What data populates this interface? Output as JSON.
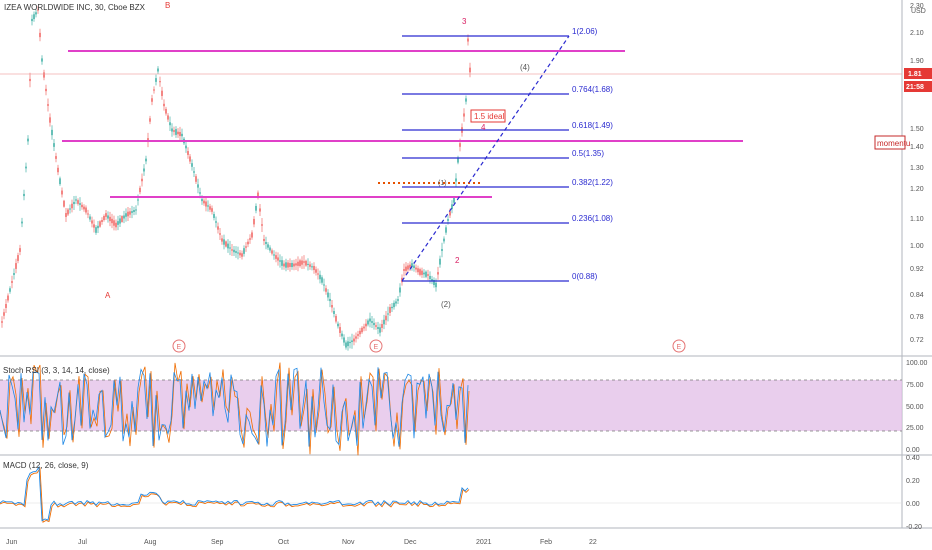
{
  "header": {
    "symbol_title": "IZEA WORLDWIDE INC, 30, Cboe BZX",
    "currency": "USD"
  },
  "price_axis": {
    "ticks": [
      "2.30",
      "2.10",
      "1.90",
      "1.70",
      "1.50",
      "1.40",
      "1.30",
      "1.20",
      "1.10",
      "1.00",
      "0.92",
      "0.84",
      "0.78",
      "0.72"
    ],
    "last_price_badge": "1.81",
    "countdown_badge": "21:58"
  },
  "fib_levels": [
    {
      "label": "1(2.06)"
    },
    {
      "label": "0.764(1.68)"
    },
    {
      "label": "0.618(1.49)"
    },
    {
      "label": "0.5(1.35)"
    },
    {
      "label": "0.382(1.22)"
    },
    {
      "label": "0.236(1.08)"
    },
    {
      "label": "0(0.88)"
    }
  ],
  "annotations": {
    "wave_b": "B",
    "wave_a": "A",
    "wave_3": "3",
    "wave_4_paren": "(4)",
    "wave_4": "4",
    "wave_2": "2",
    "wave_1_paren": "(1)",
    "wave_2_paren": "(2)",
    "ideal_box": "1.5 ideal",
    "momentum_box": "momentu",
    "earnings_marker": "E"
  },
  "stoch": {
    "title": "Stoch RSI (3, 3, 14, 14, close)",
    "ticks": [
      "100.00",
      "75.00",
      "50.00",
      "25.00",
      "0.00"
    ]
  },
  "macd": {
    "title": "MACD (12, 26, close, 9)",
    "ticks": [
      "0.40",
      "0.20",
      "0.00",
      "-0.20"
    ]
  },
  "time_axis": {
    "labels": [
      "Jun",
      "Jul",
      "Aug",
      "Sep",
      "Oct",
      "Nov",
      "Dec",
      "2021",
      "Feb",
      "22"
    ]
  },
  "colors": {
    "magenta": "#e040c8",
    "fib_blue": "#2a2ad0",
    "up_candle": "#26a69a",
    "down_candle": "#ef5350",
    "stoch_band": "#e1bee7",
    "earnings": "#e57373"
  }
}
